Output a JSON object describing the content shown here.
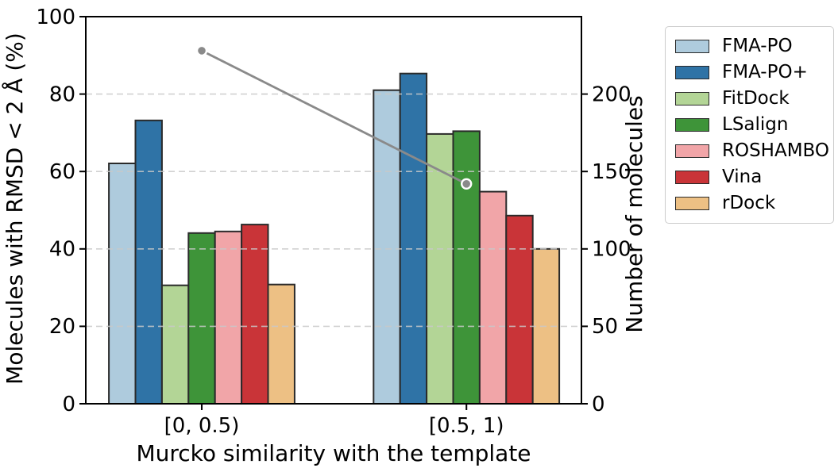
{
  "chart_data": {
    "type": "bar",
    "title": "",
    "categories": [
      "[0, 0.5)",
      "[0.5, 1)"
    ],
    "series": [
      {
        "name": "FMA-PO",
        "color": "#aecbdd",
        "values": [
          62.1,
          81.0
        ]
      },
      {
        "name": "FMA-PO+",
        "color": "#2f73a6",
        "values": [
          73.2,
          85.3
        ]
      },
      {
        "name": "FitDock",
        "color": "#b3d596",
        "values": [
          30.6,
          69.7
        ]
      },
      {
        "name": "LSalign",
        "color": "#3e9439",
        "values": [
          44.1,
          70.4
        ]
      },
      {
        "name": "ROSHAMBO",
        "color": "#f1a5a8",
        "values": [
          44.5,
          54.8
        ]
      },
      {
        "name": "Vina",
        "color": "#c93438",
        "values": [
          46.3,
          48.6
        ]
      },
      {
        "name": "rDock",
        "color": "#edc084",
        "values": [
          30.8,
          40.0
        ]
      }
    ],
    "line_series": {
      "name": "Number of molecules",
      "color": "#8a8a8a",
      "marker_edge_color": "#ffffff",
      "values": [
        228,
        142
      ]
    },
    "xlabel": "Murcko similarity with the template",
    "ylabel": "Molecules with RMSD < 2 Å (%)",
    "ylabel_right": "Number of molecules",
    "ylim": [
      0,
      100
    ],
    "ylim_right": [
      0,
      250
    ],
    "yticks": [
      0,
      20,
      40,
      60,
      80,
      100
    ],
    "yticks_right": [
      0,
      50,
      100,
      150,
      200
    ],
    "grid": true,
    "grid_color": "#c9c9c9",
    "bar_edge_color": "#2a2a2a",
    "spine_color": "#000000",
    "legend_position": "outside-upper-right"
  }
}
